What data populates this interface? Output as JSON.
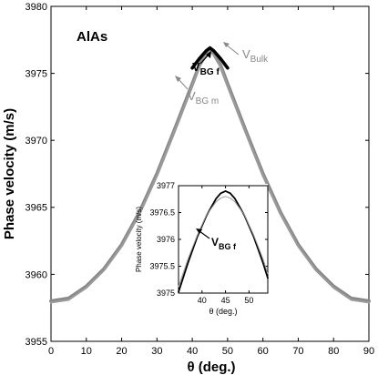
{
  "chart_data": [
    {
      "type": "line",
      "title": "",
      "annotation_material": "AlAs",
      "xlabel": "θ (deg.)",
      "ylabel": "Phase velocity (m/s)",
      "xlim": [
        0,
        90
      ],
      "ylim": [
        3955,
        3980
      ],
      "xticks": [
        0,
        10,
        20,
        30,
        40,
        50,
        60,
        70,
        80,
        90
      ],
      "yticks": [
        3955,
        3960,
        3965,
        3970,
        3975,
        3980
      ],
      "grid": false,
      "x": [
        0,
        5,
        10,
        15,
        20,
        25,
        30,
        35,
        40,
        42,
        44,
        45,
        46,
        48,
        50,
        55,
        60,
        65,
        70,
        75,
        80,
        85,
        90
      ],
      "series": [
        {
          "name": "",
          "values": [
            3958.0,
            3958.2,
            3959.1,
            3960.4,
            3962.2,
            3964.6,
            3967.5,
            3970.8,
            3974.2,
            3975.6,
            3976.5,
            3976.8,
            3976.5,
            3975.6,
            3974.2,
            3970.8,
            3967.5,
            3964.6,
            3962.2,
            3960.4,
            3959.1,
            3958.2,
            3958.0
          ],
          "color": "#888888"
        },
        {
          "name": "",
          "values": [
            3957.9,
            3958.1,
            3959.0,
            3960.3,
            3962.1,
            3964.5,
            3967.4,
            3970.7,
            3974.1,
            3975.5,
            3976.4,
            3976.7,
            3976.4,
            3975.5,
            3974.1,
            3970.7,
            3967.4,
            3964.5,
            3962.1,
            3960.3,
            3959.0,
            3958.1,
            3957.9
          ],
          "color": "#9a9a9a"
        },
        {
          "name": "",
          "values": [
            null,
            null,
            null,
            null,
            null,
            null,
            null,
            null,
            3975.4,
            3976.1,
            3976.7,
            3976.9,
            3976.7,
            3976.1,
            3975.4,
            null,
            null,
            null,
            null,
            null,
            null,
            null,
            null
          ],
          "color": "#000000"
        }
      ],
      "annotations": [
        {
          "label_main": "V",
          "label_sub": "Bulk",
          "color": "#888888"
        },
        {
          "label_main": "V",
          "label_sub": "BG f",
          "color": "#000000"
        },
        {
          "label_main": "V",
          "label_sub": "BG m",
          "color": "#888888"
        }
      ]
    },
    {
      "type": "line",
      "title": "",
      "xlabel": "θ (deg.)",
      "ylabel": "Phase velocity (m/s)",
      "xlim": [
        35,
        54
      ],
      "ylim": [
        3975,
        3977
      ],
      "xticks": [
        40,
        45,
        50
      ],
      "yticks": [
        3975,
        3975.5,
        3976,
        3976.5,
        3977
      ],
      "grid": false,
      "x": [
        35,
        37,
        39,
        41,
        43,
        44,
        45,
        46,
        47,
        49,
        51,
        53,
        54
      ],
      "series": [
        {
          "name": "",
          "values": [
            3975.02,
            3975.56,
            3976.05,
            3976.45,
            3976.76,
            3976.86,
            3976.9,
            3976.86,
            3976.76,
            3976.45,
            3976.05,
            3975.56,
            3975.28
          ],
          "color": "#000000"
        },
        {
          "name": "",
          "values": [
            3975.12,
            3975.63,
            3976.08,
            3976.46,
            3976.7,
            3976.77,
            3976.8,
            3976.77,
            3976.7,
            3976.46,
            3976.08,
            3975.63,
            3975.36
          ],
          "color": "#999999"
        }
      ],
      "annotations": [
        {
          "label_main": "V",
          "label_sub": "BG f",
          "color": "#000000"
        }
      ]
    }
  ]
}
